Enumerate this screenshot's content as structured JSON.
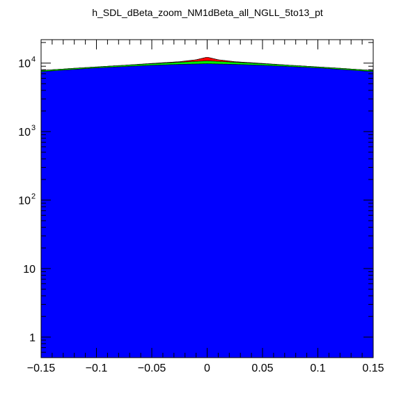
{
  "chart_data": {
    "type": "area",
    "title": "h_SDL_dBeta_zoom_NM1dBeta_all_NGLL_5to13_pt",
    "xlabel": "",
    "ylabel": "",
    "xlim": [
      -0.15,
      0.15
    ],
    "ylim": [
      0.5,
      22000
    ],
    "yscale": "log",
    "grid": false,
    "x_ticks": [
      -0.15,
      -0.1,
      -0.05,
      0,
      0.05,
      0.1,
      0.15
    ],
    "x_tick_labels": [
      "−0.15",
      "−0.1",
      "−0.05",
      "0",
      "0.05",
      "0.1",
      "0.15"
    ],
    "y_ticks": [
      1,
      10,
      100,
      1000,
      10000
    ],
    "y_tick_labels": [
      {
        "base": "1",
        "exp": ""
      },
      {
        "base": "10",
        "exp": ""
      },
      {
        "base": "10",
        "exp": "2"
      },
      {
        "base": "10",
        "exp": "3"
      },
      {
        "base": "10",
        "exp": "4"
      }
    ],
    "x": [
      -0.15,
      -0.125,
      -0.1,
      -0.075,
      -0.05,
      -0.025,
      -0.01,
      0,
      0.01,
      0.025,
      0.05,
      0.075,
      0.1,
      0.125,
      0.15
    ],
    "series": [
      {
        "color": "#ff0000",
        "values": [
          7800,
          8300,
          8800,
          9300,
          9900,
          10500,
          11200,
          12200,
          11200,
          10500,
          9900,
          9300,
          8800,
          8300,
          7800
        ]
      },
      {
        "color": "#00ee00",
        "values": [
          7800,
          8300,
          8800,
          9300,
          9800,
          10300,
          10600,
          10800,
          10600,
          10300,
          9800,
          9300,
          8800,
          8300,
          7800
        ]
      },
      {
        "color": "#0000ff",
        "values": [
          7500,
          8000,
          8500,
          8900,
          9300,
          9600,
          9700,
          9800,
          9700,
          9600,
          9300,
          8900,
          8500,
          8000,
          7500
        ]
      }
    ]
  }
}
